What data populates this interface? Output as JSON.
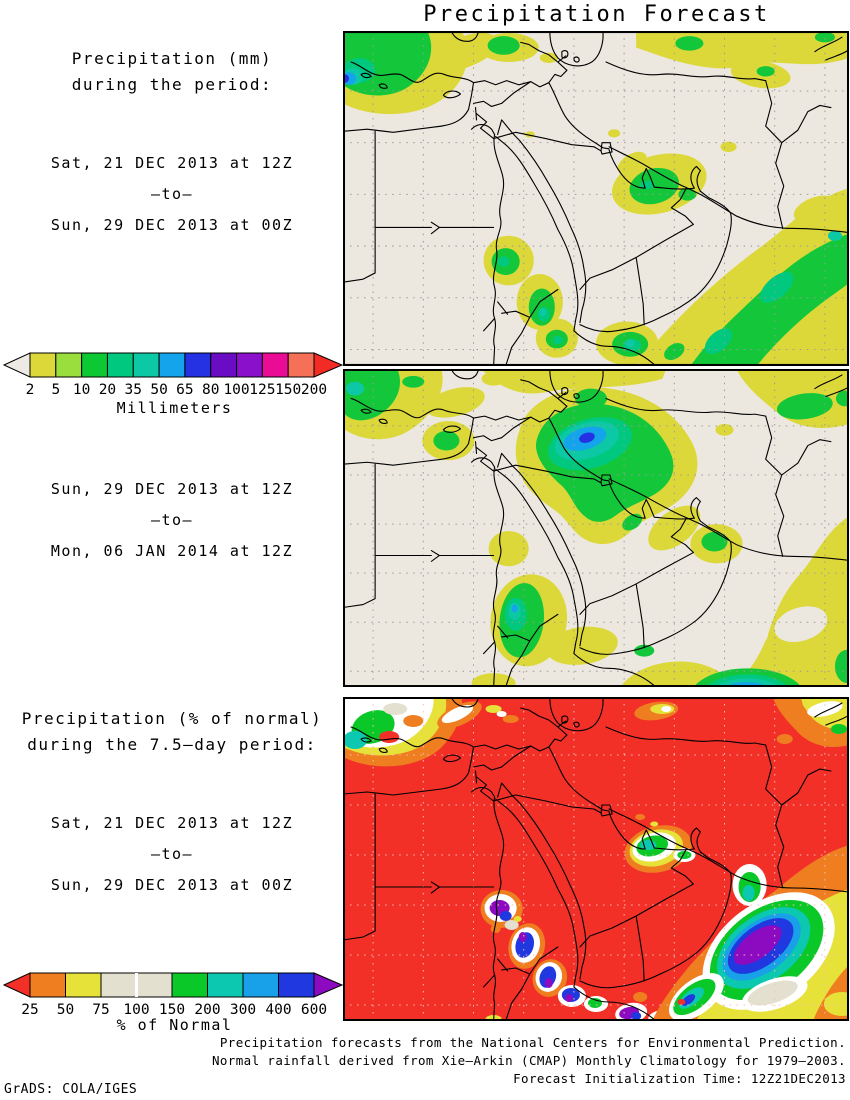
{
  "title": "Precipitation Forecast",
  "panel_mm": {
    "heading1": "Precipitation (mm)",
    "heading2": "during the period:",
    "period1": {
      "start": "Sat, 21 DEC 2013 at 12Z",
      "to": "–to–",
      "end": "Sun, 29 DEC 2013 at 00Z"
    },
    "period2": {
      "start": "Sun, 29 DEC 2013 at 12Z",
      "to": "–to–",
      "end": "Mon, 06 JAN 2014 at 12Z"
    }
  },
  "panel_pct": {
    "heading1": "Precipitation (% of normal)",
    "heading2": "during the 7.5–day period:",
    "period": {
      "start": "Sat, 21 DEC 2013 at 12Z",
      "to": "–to–",
      "end": "Sun, 29 DEC 2013 at 00Z"
    }
  },
  "colorbar_mm": {
    "caption": "Millimeters",
    "labels": [
      "2",
      "5",
      "10",
      "20",
      "35",
      "50",
      "65",
      "80",
      "100",
      "125",
      "150",
      "200"
    ],
    "segment_colors": [
      "#ddd83a",
      "#9ade3e",
      "#0cc832",
      "#00c87e",
      "#0cc8a4",
      "#14a4ec",
      "#2432e4",
      "#6a0cc4",
      "#8a10cc",
      "#ea0c94",
      "#f67058"
    ],
    "left_arrow_color": "#eceae2",
    "right_arrow_color": "#f22c24"
  },
  "colorbar_pct": {
    "caption": "% of Normal",
    "labels": [
      "25",
      "50",
      "75",
      "100",
      "150",
      "200",
      "300",
      "400",
      "600"
    ],
    "segment_colors": [
      "#ee7e20",
      "#e6e23a",
      "#e4e0d0",
      "#e4e0d0",
      "#0ac828",
      "#0cc8b0",
      "#18a0e8",
      "#2038e0"
    ],
    "left_arrow_color": "#f23028",
    "right_arrow_color": "#8c0ac0",
    "white_divider_label_index": 3
  },
  "footer": {
    "line1": "Precipitation forecasts from the National Centers for Environmental Prediction.",
    "line2": "Normal rainfall derived from Xie–Arkin (CMAP) Monthly Climatology for 1979–2003.",
    "line3": "Forecast Initialization Time: 12Z21DEC2013"
  },
  "credit": "GrADS: COLA/IGES",
  "map": {
    "land_color": "#ece8e0",
    "grid_color": "#9a9a9a",
    "grid_color_pct": "#f6beb6",
    "frame_color": "#000000",
    "pct_background": "#f23028"
  },
  "palette_mm": {
    "yellow": "#ddd83a",
    "yellowgreen": "#9ade3e",
    "green": "#14c73a",
    "spring": "#00c87e",
    "teal": "#0cc8a4",
    "cyan": "#14a4ec",
    "blue": "#2432e4",
    "violet": "#6a0cc4",
    "purple": "#8a10cc",
    "magenta": "#ea0c94",
    "salmon": "#f67058"
  },
  "palette_pct": {
    "red": "#f23028",
    "orange": "#ee7e20",
    "yellow": "#e6e23a",
    "beige": "#e4e0d0",
    "green": "#0ac828",
    "teal": "#0cc8b0",
    "lightblue": "#18a0e8",
    "blue": "#2038e0",
    "purple": "#8c0ac0",
    "white": "#ffffff"
  }
}
